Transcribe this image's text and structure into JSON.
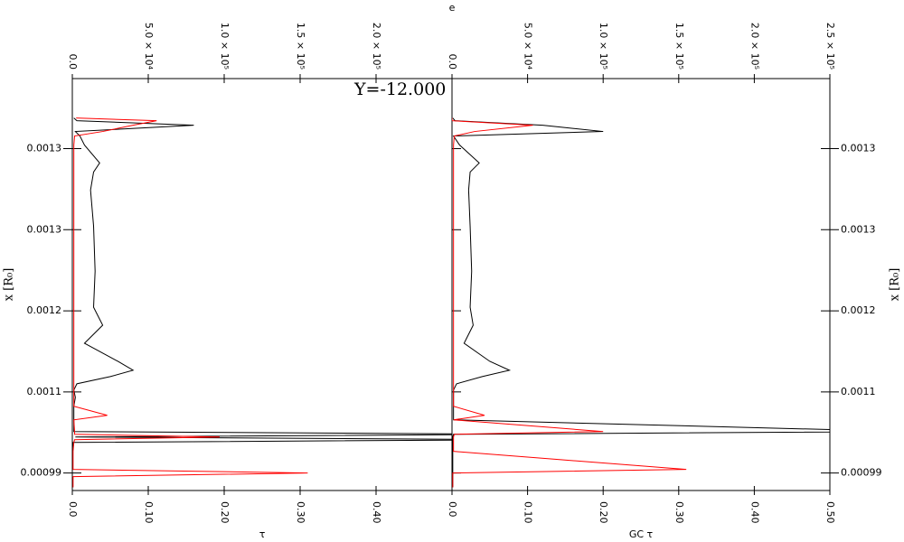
{
  "chart_data": [
    {
      "type": "line",
      "title": "Y=-12.000",
      "xlabel": "τ",
      "x2label": "e",
      "ylabel": "x [R₀]",
      "y": [
        0.0013752,
        0.0013723,
        0.0013674,
        0.0013606,
        0.0013557,
        0.0013459,
        0.0013264,
        0.0013166,
        0.001297,
        0.0012579,
        0.001209,
        0.0011699,
        0.0011504,
        0.0011308,
        0.0011112,
        0.0011015,
        0.0010946,
        0.0010868,
        0.00108,
        0.0010721,
        0.0010624,
        0.0010526,
        0.0010477,
        0.001035,
        0.001032,
        0.0010291,
        0.0010262,
        0.0010232,
        0.0010135,
        0.0009939,
        0.00099,
        0.0009861,
        0.0009744
      ],
      "ylim": [
        0.000971,
        0.001418
      ],
      "yticks": [
        {
          "value": 0.00099,
          "label": "0.00099"
        },
        {
          "value": 0.001078,
          "label": "0.0011"
        },
        {
          "value": 0.001166,
          "label": "0.0012"
        },
        {
          "value": 0.001254,
          "label": "0.0013"
        },
        {
          "value": 0.001342,
          "label": "0.0013"
        }
      ],
      "xlim": [
        0,
        0.5
      ],
      "xticks": [
        {
          "value": 0,
          "label": "0.0"
        },
        {
          "value": 0.1,
          "label": "0.10"
        },
        {
          "value": 0.2,
          "label": "0.20"
        },
        {
          "value": 0.3,
          "label": "0.30"
        },
        {
          "value": 0.4,
          "label": "0.40"
        }
      ],
      "x2lim": [
        0,
        250000
      ],
      "x2ticks": [
        {
          "value": 0,
          "label": "0.0"
        },
        {
          "value": 50000,
          "label": "5.0 × 10⁴"
        },
        {
          "value": 100000,
          "label": "1.0 × 10⁵"
        },
        {
          "value": 150000,
          "label": "1.5 × 10⁵"
        },
        {
          "value": 200000,
          "label": "2.0 × 10⁵"
        }
      ],
      "yaxis_side": "left",
      "series": [
        {
          "color": "#000000",
          "axis": "x2",
          "values": [
            1000,
            3000,
            80000,
            2000,
            5000,
            8000,
            18000,
            14000,
            12000,
            14000,
            15000,
            14000,
            20000,
            8000,
            30000,
            40000,
            25000,
            3000,
            1000,
            2000,
            1000,
            1000,
            1000,
            1000,
            300000,
            2000,
            300000,
            500,
            0,
            0,
            0,
            0,
            0
          ]
        },
        {
          "color": "#ff0000",
          "axis": "x",
          "values": [
            0.005,
            0.111,
            0.08,
            0.04,
            0.003,
            0.002,
            0.002,
            0.002,
            0.002,
            0.002,
            0.002,
            0.002,
            0.002,
            0.002,
            0.002,
            0.002,
            0.002,
            0.002,
            0.002,
            0.002,
            0.002,
            0.046,
            0.002,
            0.003,
            0.003,
            0.194,
            0.003,
            0.002,
            0.001,
            0.001,
            0.31,
            0.001,
            0.001
          ]
        }
      ]
    },
    {
      "type": "line",
      "xlabel": "GC τ",
      "ylabel": "x [R₀]",
      "y": [
        0.0013752,
        0.0013723,
        0.0013674,
        0.0013606,
        0.0013557,
        0.0013459,
        0.0013264,
        0.0013166,
        0.001297,
        0.0012579,
        0.001209,
        0.0011699,
        0.0011504,
        0.0011308,
        0.0011112,
        0.0011015,
        0.0010946,
        0.0010868,
        0.00108,
        0.0010721,
        0.0010624,
        0.0010526,
        0.0010477,
        0.001035,
        0.001032,
        0.0010291,
        0.0010262,
        0.0010232,
        0.0010135,
        0.0009939,
        0.00099,
        0.0009861,
        0.0009744
      ],
      "ylim": [
        0.000971,
        0.001418
      ],
      "yticks": [
        {
          "value": 0.00099,
          "label": "0.00099"
        },
        {
          "value": 0.001078,
          "label": "0.0011"
        },
        {
          "value": 0.001166,
          "label": "0.0012"
        },
        {
          "value": 0.001254,
          "label": "0.0013"
        },
        {
          "value": 0.001342,
          "label": "0.0013"
        }
      ],
      "xlim": [
        0,
        0.5
      ],
      "xticks": [
        {
          "value": 0,
          "label": "0.0"
        },
        {
          "value": 0.1,
          "label": "0.10"
        },
        {
          "value": 0.2,
          "label": "0.20"
        },
        {
          "value": 0.3,
          "label": "0.30"
        },
        {
          "value": 0.4,
          "label": "0.40"
        },
        {
          "value": 0.5,
          "label": "0.50"
        }
      ],
      "x2lim": [
        0,
        250000
      ],
      "x2ticks": [
        {
          "value": 0,
          "label": "0.0"
        },
        {
          "value": 50000,
          "label": "5.0 × 10⁴"
        },
        {
          "value": 100000,
          "label": "1.0 × 10⁵"
        },
        {
          "value": 150000,
          "label": "1.5 × 10⁵"
        },
        {
          "value": 200000,
          "label": "2.0 × 10⁵"
        },
        {
          "value": 250000,
          "label": "2.5 × 10⁵"
        }
      ],
      "yaxis_side": "right",
      "series": [
        {
          "color": "#000000",
          "axis": "x2",
          "values": [
            500,
            2000,
            60000,
            100000,
            1000,
            5000,
            18000,
            12000,
            11000,
            12000,
            13000,
            12000,
            14000,
            8000,
            25000,
            38000,
            20000,
            3000,
            1000,
            1000,
            1000,
            1000,
            1000,
            300000,
            1000,
            500,
            500,
            500,
            500,
            500,
            500,
            500,
            500
          ]
        },
        {
          "color": "#ff0000",
          "axis": "x",
          "values": [
            0,
            0,
            0.107,
            0.03,
            0.003,
            0.002,
            0.002,
            0.002,
            0.002,
            0.002,
            0.002,
            0.002,
            0.002,
            0.002,
            0.002,
            0.002,
            0.002,
            0.002,
            0.002,
            0.002,
            0.002,
            0.043,
            0.002,
            0.2,
            0.003,
            0.002,
            0.002,
            0.002,
            0.002,
            0.31,
            0.001,
            0.001,
            0.001
          ]
        }
      ]
    }
  ]
}
